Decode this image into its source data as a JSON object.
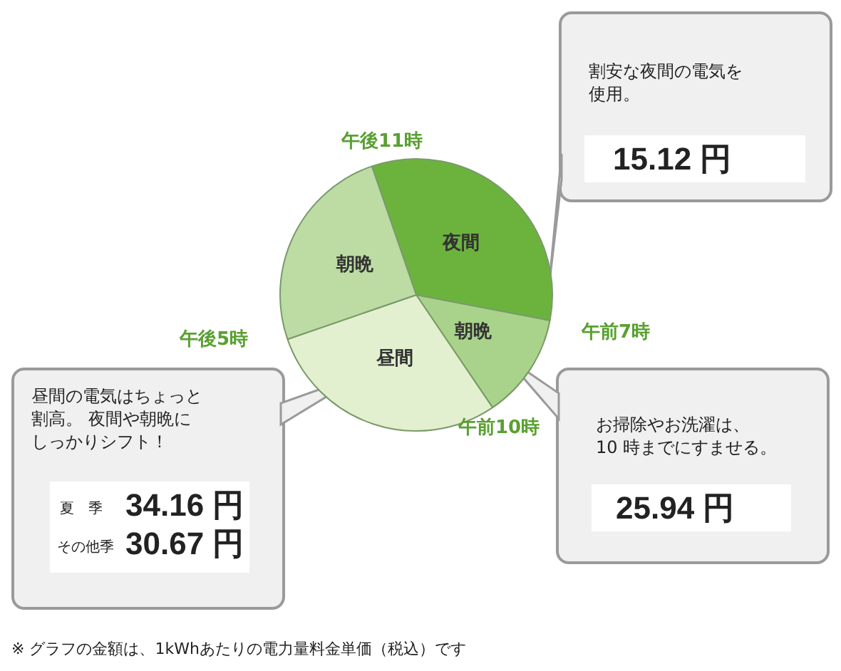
{
  "chart_data": {
    "type": "pie",
    "categories": [
      "夜間",
      "朝晩",
      "昼間",
      "朝晩"
    ],
    "values": [
      33.3,
      12.5,
      29.2,
      25.0
    ],
    "colors": [
      "#6cb33e",
      "#a9d38b",
      "#e3f0d0",
      "#bddca4"
    ],
    "legend": false,
    "annotations": [
      "午後11時",
      "午前7時",
      "午前10時",
      "午後5時",
      "割安な夜間の電気を使用。",
      "15.12 円",
      "昼間の電気はちょっと割高。 夜間や朝晩にしっかりシフト！",
      "夏　季",
      "34.16 円",
      "その他季",
      "30.67 円",
      "お掃除やお洗濯は、10 時までにすませる。",
      "25.94 円",
      "※  グラフの金額は、1kWhあたりの電力量料金単価（税込）です"
    ]
  }
}
